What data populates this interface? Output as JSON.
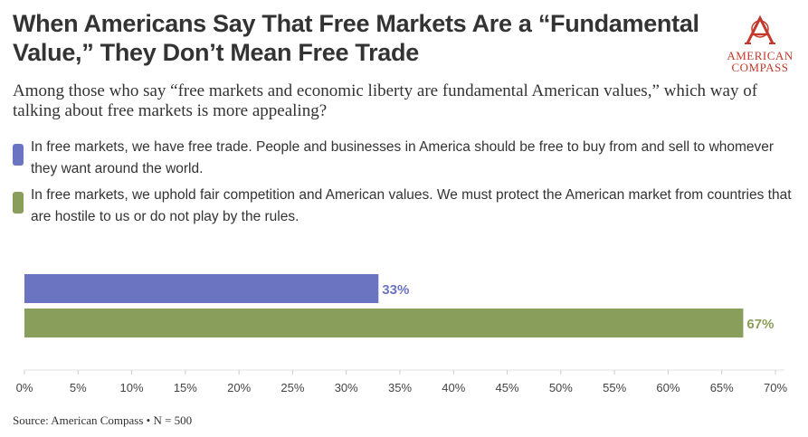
{
  "title": "When Americans Say That Free Markets Are a “Fundamental Value,” They Don’t Mean Free Trade",
  "subtitle": "Among those who say “free markets and economic liberty are fundamental American values,” which way of talking about free markets is more appealing?",
  "logo": {
    "line1": "AMERICAN",
    "line2": "COMPASS",
    "icon": "compass-a-icon",
    "color": "#c0392b"
  },
  "source": "Source: American Compass • N = 500",
  "chart_data": {
    "type": "bar",
    "orientation": "horizontal",
    "series": [
      {
        "name": "In free markets, we have free trade. People and businesses in America should be free to buy from and sell to whomever they want around the world.",
        "value": 33,
        "label": "33%",
        "color": "#6b74c1"
      },
      {
        "name": "In free markets, we uphold fair competition and American values. We must protect the American market from countries that are hostile to us or do not play by the rules.",
        "value": 67,
        "label": "67%",
        "color": "#8a9e5b"
      }
    ],
    "xlim": [
      0,
      70
    ],
    "xticks": [
      0,
      5,
      10,
      15,
      20,
      25,
      30,
      35,
      40,
      45,
      50,
      55,
      60,
      65,
      70
    ],
    "tick_suffix": "%",
    "grid": false,
    "legend_position": "top"
  }
}
